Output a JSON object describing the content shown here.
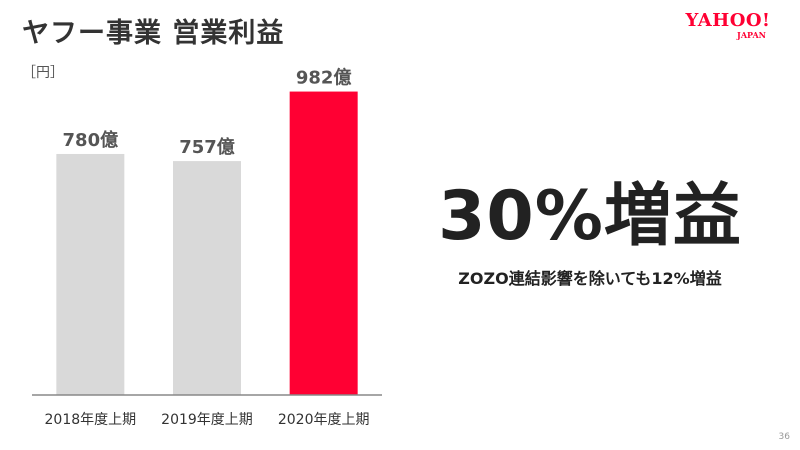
{
  "slide": {
    "title": "ヤフー事業 営業利益",
    "logo_main": "YAHOO!",
    "logo_sub": "JAPAN",
    "unit_label": "［円］",
    "highlight": "30%増益",
    "note": "ZOZO連結影響を除いても12%増益",
    "page_number": "36"
  },
  "chart_data": {
    "type": "bar",
    "categories": [
      "2018年度上期",
      "2019年度上期",
      "2020年度上期"
    ],
    "values": [
      780,
      757,
      982
    ],
    "data_labels": [
      "780億",
      "757億",
      "982億"
    ],
    "ylabel": "［円］",
    "ylim": [
      0,
      1000
    ],
    "colors": [
      "#d9d9d9",
      "#d9d9d9",
      "#ff0033"
    ],
    "grid": false,
    "legend": "none"
  }
}
